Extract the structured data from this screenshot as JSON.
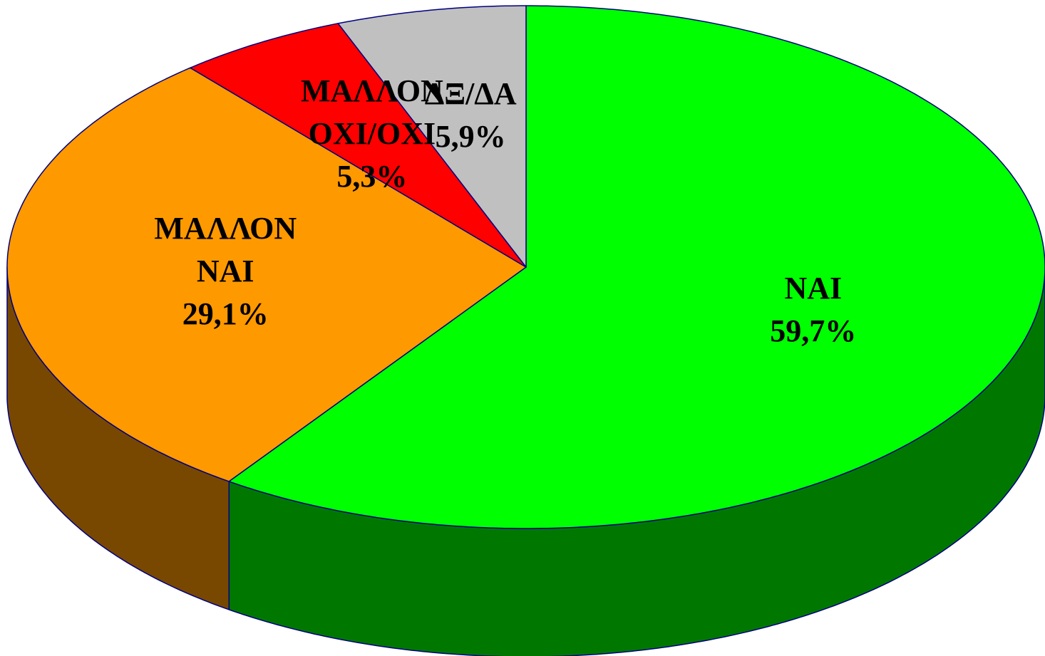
{
  "chart_data": {
    "type": "pie",
    "categories": [
      "ΝΑΙ",
      "ΜΑΛΛΟΝ ΝΑΙ",
      "ΜΑΛΛΟΝ ΟΧΙ/ΟΧΙ",
      "ΔΞ/ΔΑ"
    ],
    "values": [
      59.7,
      29.1,
      5.3,
      5.9
    ],
    "value_labels": [
      "59,7%",
      "29,1%",
      "5,3%",
      "5,9%"
    ],
    "colors": [
      "#00ff00",
      "#ff9900",
      "#ff0000",
      "#c0c0c0"
    ]
  }
}
